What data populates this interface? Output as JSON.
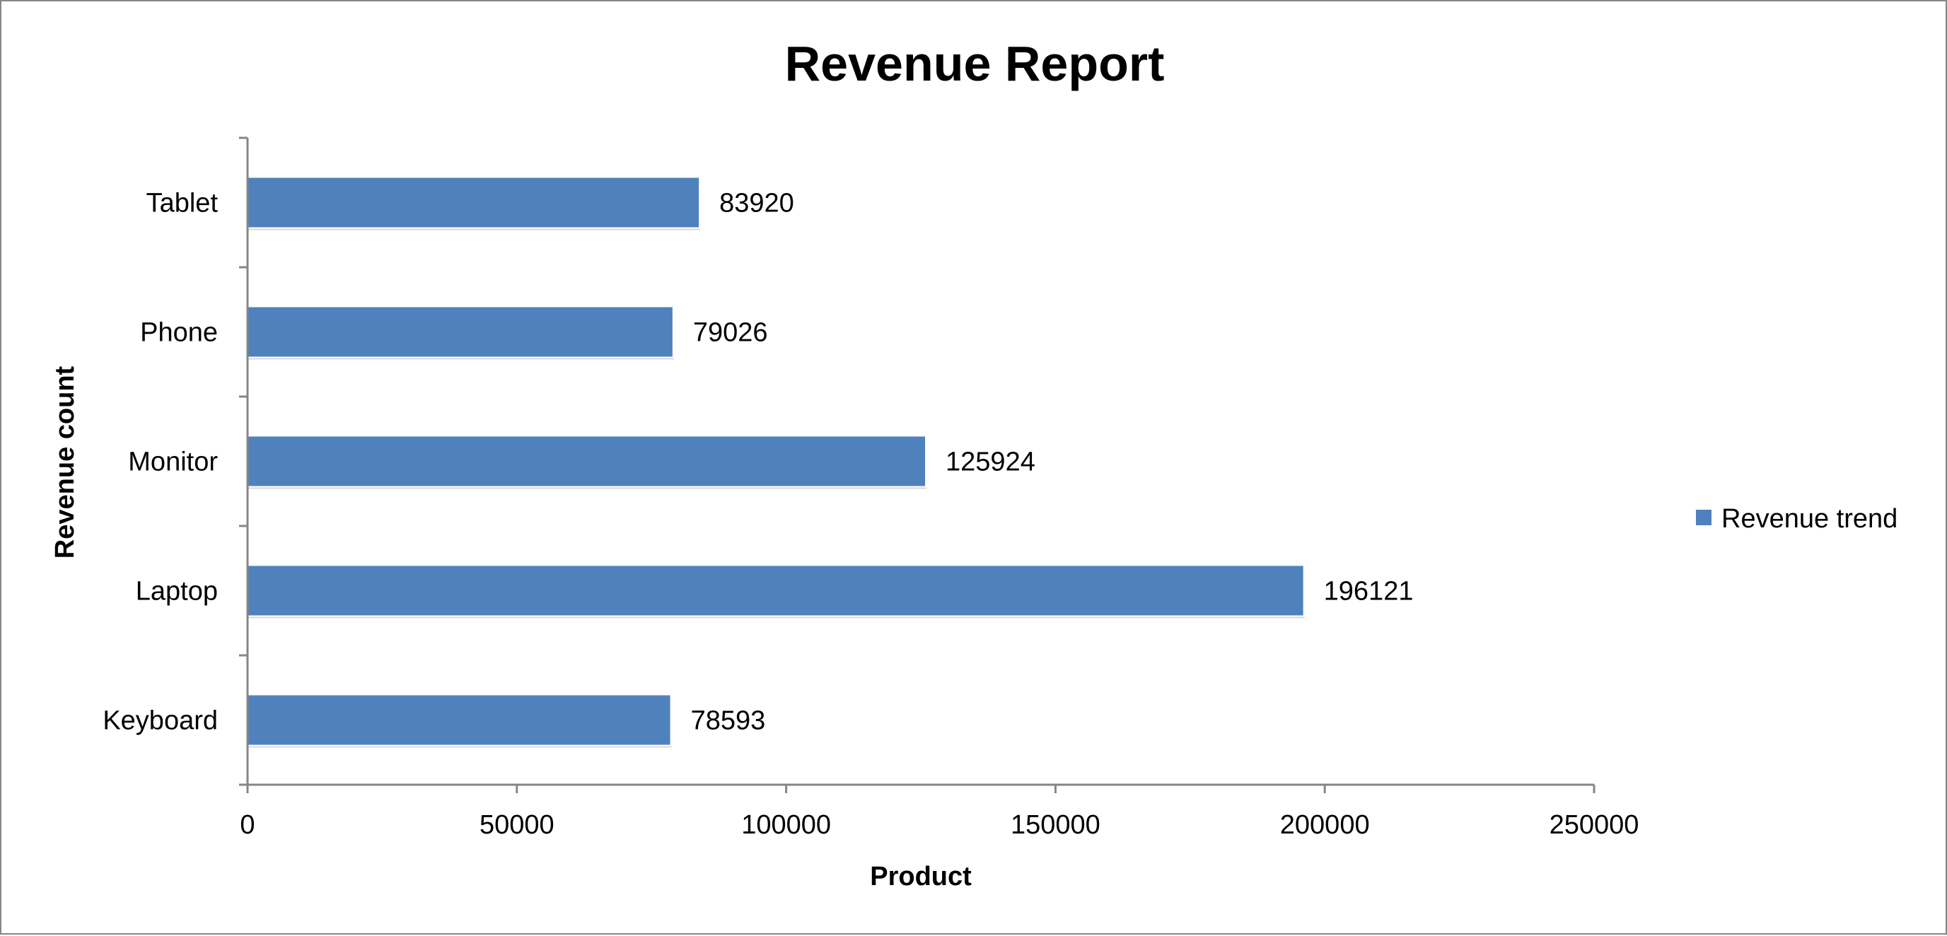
{
  "chart_data": {
    "type": "bar",
    "orientation": "horizontal",
    "title": "Revenue Report",
    "xlabel": "Product",
    "ylabel": "Revenue count",
    "categories": [
      "Keyboard",
      "Laptop",
      "Monitor",
      "Phone",
      "Tablet"
    ],
    "series": [
      {
        "name": "Revenue trend",
        "color": "#4F81BD",
        "values": [
          78593,
          196121,
          125924,
          79026,
          83920
        ]
      }
    ],
    "xlim": [
      0,
      250000
    ],
    "x_ticks": [
      "0",
      "50000",
      "100000",
      "150000",
      "200000",
      "250000"
    ],
    "data_labels": [
      "78593",
      "196121",
      "125924",
      "79026",
      "83920"
    ],
    "grid": false,
    "legend_position": "right"
  }
}
